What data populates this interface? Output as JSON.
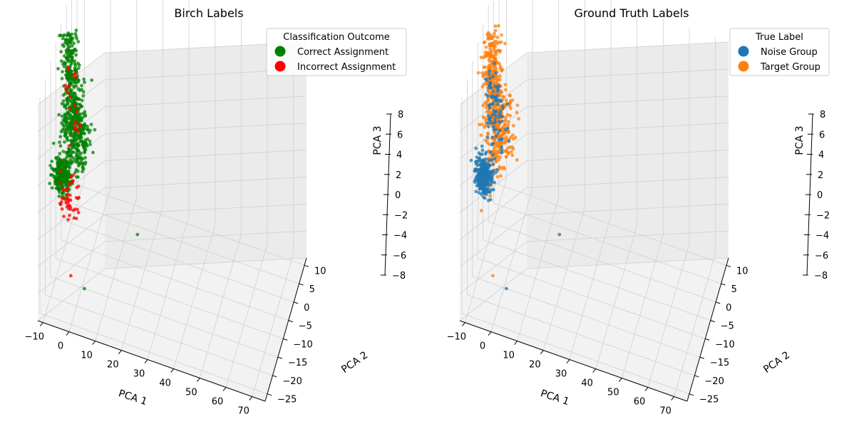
{
  "figure": {
    "background": "#ffffff",
    "pane_color": "#f2f2f2",
    "grid_color": "#d0d0d0"
  },
  "chart_data": [
    {
      "type": "scatter",
      "projection": "3d",
      "title": "Birch Labels",
      "xlabel": "PCA 1",
      "ylabel": "PCA 2",
      "zlabel": "PCA 3",
      "xlim": [
        -12,
        75
      ],
      "ylim": [
        -27,
        12
      ],
      "zlim": [
        -8,
        8
      ],
      "xticks": [
        "−10",
        "0",
        "10",
        "20",
        "30",
        "40",
        "50",
        "60",
        "70"
      ],
      "yticks": [
        "−25",
        "−20",
        "−15",
        "−10",
        "−5",
        "0",
        "5",
        "10"
      ],
      "zticks": [
        "−8",
        "−6",
        "−4",
        "−2",
        "0",
        "2",
        "4",
        "6",
        "8"
      ],
      "grid": true,
      "legend": {
        "title": "Classification Outcome",
        "placement": "top-right",
        "entries": [
          {
            "label": "Correct Assignment",
            "color": "#008000"
          },
          {
            "label": "Incorrect Assignment",
            "color": "#ff0000"
          }
        ]
      },
      "series": [
        {
          "name": "Correct Assignment",
          "color": "#008000",
          "clusters": [
            {
              "center": [
                -8,
                -6,
                5.0
              ],
              "spread": [
                1.6,
                1.4,
                1.8
              ],
              "count": 240
            },
            {
              "center": [
                -6,
                -6,
                0.5
              ],
              "spread": [
                2.6,
                1.8,
                1.4
              ],
              "count": 320
            },
            {
              "center": [
                -12,
                -4,
                -3.5
              ],
              "spread": [
                1.7,
                1.3,
                0.6
              ],
              "count": 260
            }
          ],
          "outliers": [
            [
              16,
              -2,
              -6.5
            ],
            [
              3,
              -20,
              -6.5
            ]
          ]
        },
        {
          "name": "Incorrect Assignment",
          "color": "#ff0000",
          "clusters": [
            {
              "center": [
                -8,
                -6,
                4.5
              ],
              "spread": [
                1.0,
                1.0,
                0.9
              ],
              "count": 10
            },
            {
              "center": [
                -6,
                -6,
                1.5
              ],
              "spread": [
                1.4,
                1.0,
                0.9
              ],
              "count": 12
            },
            {
              "center": [
                -8,
                -8,
                -3.8
              ],
              "spread": [
                2.0,
                1.3,
                0.7
              ],
              "count": 45
            }
          ],
          "outliers": [
            [
              -3,
              -18,
              -6.5
            ]
          ]
        }
      ]
    },
    {
      "type": "scatter",
      "projection": "3d",
      "title": "Ground Truth Labels",
      "xlabel": "PCA 1",
      "ylabel": "PCA 2",
      "zlabel": "PCA 3",
      "xlim": [
        -12,
        75
      ],
      "ylim": [
        -27,
        12
      ],
      "zlim": [
        -8,
        8
      ],
      "xticks": [
        "−10",
        "0",
        "10",
        "20",
        "30",
        "40",
        "50",
        "60",
        "70"
      ],
      "yticks": [
        "−25",
        "−20",
        "−15",
        "−10",
        "−5",
        "0",
        "5",
        "10"
      ],
      "zticks": [
        "−8",
        "−6",
        "−4",
        "−2",
        "0",
        "2",
        "4",
        "6",
        "8"
      ],
      "grid": true,
      "legend": {
        "title": "True Label",
        "placement": "top-right",
        "entries": [
          {
            "label": "Noise Group",
            "color": "#1f77b4"
          },
          {
            "label": "Target Group",
            "color": "#ff7f0e"
          }
        ]
      },
      "series": [
        {
          "name": "Target Group",
          "color": "#ff7f0e",
          "clusters": [
            {
              "center": [
                -8,
                -6,
                5.0
              ],
              "spread": [
                1.6,
                1.4,
                1.8
              ],
              "count": 240
            },
            {
              "center": [
                -6,
                -6,
                1.0
              ],
              "spread": [
                2.6,
                1.8,
                1.5
              ],
              "count": 280
            },
            {
              "center": [
                -10,
                -6,
                -3.0
              ],
              "spread": [
                1.5,
                1.1,
                0.6
              ],
              "count": 40
            }
          ],
          "outliers": [
            [
              -3,
              -18,
              -6.5
            ]
          ]
        },
        {
          "name": "Noise Group",
          "color": "#1f77b4",
          "clusters": [
            {
              "center": [
                -12,
                -4,
                -3.5
              ],
              "spread": [
                1.7,
                1.3,
                0.6
              ],
              "count": 260
            },
            {
              "center": [
                -6,
                -6,
                1.5
              ],
              "spread": [
                2.2,
                1.6,
                1.5
              ],
              "count": 60
            },
            {
              "center": [
                -8,
                -7,
                4.0
              ],
              "spread": [
                1.3,
                1.2,
                1.0
              ],
              "count": 30
            }
          ],
          "outliers": [
            [
              16,
              -2,
              -6.5
            ],
            [
              3,
              -20,
              -6.5
            ]
          ]
        }
      ]
    }
  ]
}
